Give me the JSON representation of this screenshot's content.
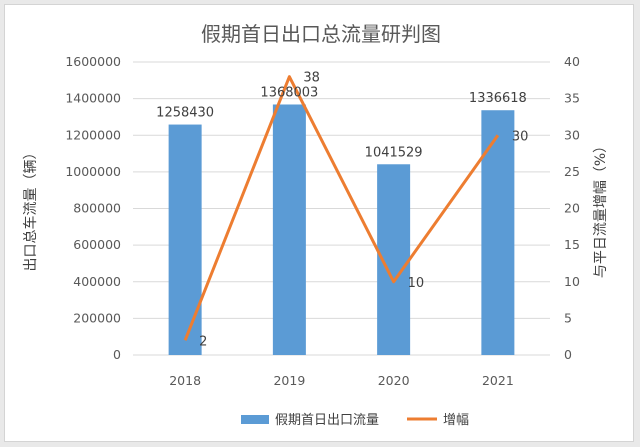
{
  "chart_data": {
    "type": "bar+line",
    "title": "假期首日出口总流量研判图",
    "categories": [
      "2018",
      "2019",
      "2020",
      "2021"
    ],
    "series": [
      {
        "name": "假期首日出口流量",
        "type": "bar",
        "axis": "left",
        "values": [
          1258430,
          1368003,
          1041529,
          1336618
        ],
        "labels": [
          "1258430",
          "1368003",
          "1041529",
          "1336618"
        ],
        "color": "#5b9bd5"
      },
      {
        "name": "增幅",
        "type": "line",
        "axis": "right",
        "values": [
          2,
          38,
          10,
          30
        ],
        "labels": [
          "2",
          "38",
          "10",
          "30"
        ],
        "color": "#ed7d31"
      }
    ],
    "y_left": {
      "label": "出口总车流量（辆）",
      "min": 0,
      "max": 1600000,
      "ticks": [
        "0",
        "200000",
        "400000",
        "600000",
        "800000",
        "1000000",
        "1200000",
        "1400000",
        "1600000"
      ]
    },
    "y_right": {
      "label": "与平日流量增幅（%）",
      "min": 0,
      "max": 40,
      "ticks": [
        "0",
        "5",
        "10",
        "15",
        "20",
        "25",
        "30",
        "35",
        "40"
      ]
    },
    "grid": true,
    "legend": "bottom"
  }
}
